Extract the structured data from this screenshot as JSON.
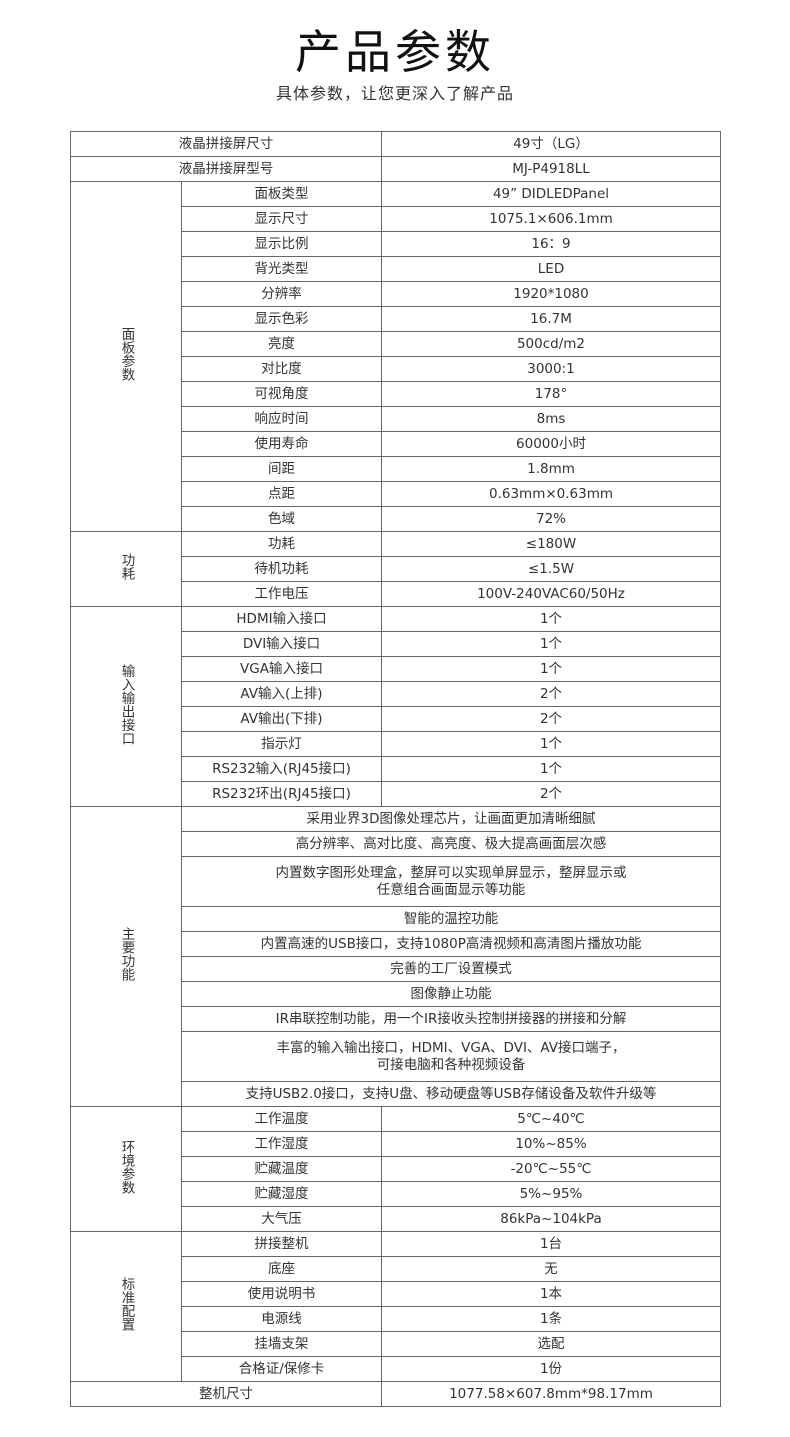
{
  "header": {
    "title": "产品参数",
    "subtitle": "具体参数，让您更深入了解产品"
  },
  "table": {
    "top_rows": [
      {
        "label": "液晶拼接屏尺寸",
        "value": "49寸（LG）"
      },
      {
        "label": "液晶拼接屏型号",
        "value": "MJ-P4918LL"
      }
    ],
    "groups": [
      {
        "label": "面板参数",
        "rows": [
          {
            "label": "面板类型",
            "value": "49” DIDLEDPanel"
          },
          {
            "label": "显示尺寸",
            "value": "1075.1×606.1mm"
          },
          {
            "label": "显示比例",
            "value": "16：9"
          },
          {
            "label": "背光类型",
            "value": "LED"
          },
          {
            "label": "分辨率",
            "value": "1920*1080"
          },
          {
            "label": "显示色彩",
            "value": "16.7M"
          },
          {
            "label": "亮度",
            "value": "500cd/m2"
          },
          {
            "label": "对比度",
            "value": "3000:1"
          },
          {
            "label": "可视角度",
            "value": "178°"
          },
          {
            "label": "响应时间",
            "value": "8ms"
          },
          {
            "label": "使用寿命",
            "value": "60000小时"
          },
          {
            "label": "间距",
            "value": "1.8mm"
          },
          {
            "label": "点距",
            "value": "0.63mm×0.63mm"
          },
          {
            "label": "色域",
            "value": "72%"
          }
        ]
      },
      {
        "label": "功耗",
        "rows": [
          {
            "label": "功耗",
            "value": "≤180W"
          },
          {
            "label": "待机功耗",
            "value": "≤1.5W"
          },
          {
            "label": "工作电压",
            "value": "100V-240VAC60/50Hz"
          }
        ]
      },
      {
        "label": "输入输出接口",
        "rows": [
          {
            "label": "HDMI输入接口",
            "value": "1个"
          },
          {
            "label": "DVI输入接口",
            "value": "1个"
          },
          {
            "label": "VGA输入接口",
            "value": "1个"
          },
          {
            "label": "AV输入(上排)",
            "value": "2个"
          },
          {
            "label": "AV输出(下排)",
            "value": "2个"
          },
          {
            "label": "指示灯",
            "value": "1个"
          },
          {
            "label": "RS232输入(RJ45接口)",
            "value": "1个"
          },
          {
            "label": "RS232环出(RJ45接口)",
            "value": "2个"
          }
        ]
      },
      {
        "label": "主要功能",
        "features": [
          "采用业界3D图像处理芯片，让画面更加清晰细腻",
          "高分辨率、高对比度、高亮度、极大提高画面层次感",
          "内置数字图形处理盒，整屏可以实现单屏显示，整屏显示或\n任意组合画面显示等功能",
          "智能的温控功能",
          "内置高速的USB接口，支持1080P高清视频和高清图片播放功能",
          "完善的工厂设置模式",
          "图像静止功能",
          "IR串联控制功能，用一个IR接收头控制拼接器的拼接和分解",
          "丰富的输入输出接口，HDMI、VGA、DVI、AV接口端子，\n可接电脑和各种视频设备",
          "支持USB2.0接口，支持U盘、移动硬盘等USB存储设备及软件升级等"
        ]
      },
      {
        "label": "环境参数",
        "rows": [
          {
            "label": "工作温度",
            "value": "5℃~40℃"
          },
          {
            "label": "工作湿度",
            "value": "10%~85%"
          },
          {
            "label": "贮藏温度",
            "value": "-20℃~55℃"
          },
          {
            "label": "贮藏湿度",
            "value": "5%~95%"
          },
          {
            "label": "大气压",
            "value": "86kPa~104kPa"
          }
        ]
      },
      {
        "label": "标准配置",
        "rows": [
          {
            "label": "拼接整机",
            "value": "1台"
          },
          {
            "label": "底座",
            "value": "无"
          },
          {
            "label": "使用说明书",
            "value": "1本"
          },
          {
            "label": "电源线",
            "value": "1条"
          },
          {
            "label": "挂墙支架",
            "value": "选配"
          },
          {
            "label": "合格证/保修卡",
            "value": "1份"
          }
        ]
      }
    ],
    "bottom_rows": [
      {
        "label": "整机尺寸",
        "value": "1077.58×607.8mm*98.17mm"
      }
    ]
  }
}
